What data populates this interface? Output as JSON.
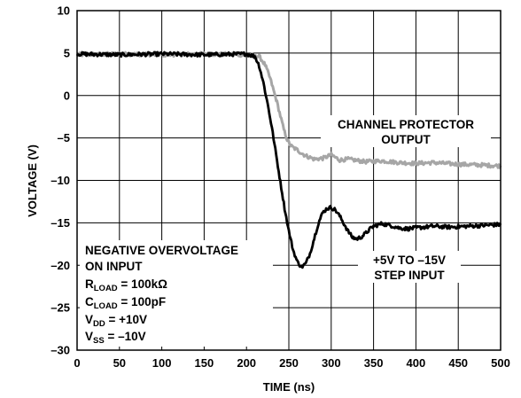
{
  "chart_data": {
    "type": "line",
    "title": "",
    "xlabel": "TIME (ns)",
    "ylabel": "VOLTAGE (V)",
    "xlim": [
      0,
      500
    ],
    "ylim": [
      -30,
      10
    ],
    "x_ticks": [
      0,
      50,
      100,
      150,
      200,
      250,
      300,
      350,
      400,
      450,
      500
    ],
    "y_ticks": [
      10,
      5,
      0,
      -5,
      -10,
      -15,
      -20,
      -25,
      -30
    ],
    "grid": true,
    "series": [
      {
        "name": "CHANNEL PROTECTOR OUTPUT",
        "color": "#a6a6a6",
        "x": [
          0,
          50,
          100,
          150,
          200,
          215,
          222,
          228,
          232,
          236,
          240,
          244,
          248,
          252,
          256,
          260,
          265,
          270,
          280,
          290,
          300,
          310,
          320,
          340,
          360,
          380,
          400,
          420,
          450,
          480,
          500
        ],
        "y": [
          4.8,
          4.9,
          4.8,
          4.9,
          4.8,
          4.6,
          3.6,
          2.0,
          0.6,
          -0.8,
          -2.4,
          -4.0,
          -5.2,
          -5.9,
          -6.2,
          -6.4,
          -6.8,
          -7.1,
          -7.5,
          -7.4,
          -7.0,
          -7.6,
          -7.5,
          -7.8,
          -7.7,
          -7.9,
          -8.0,
          -7.9,
          -8.1,
          -8.2,
          -8.3
        ]
      },
      {
        "name": "+5V TO –15V STEP INPUT",
        "color": "#000000",
        "x": [
          0,
          50,
          100,
          150,
          200,
          210,
          215,
          220,
          225,
          230,
          235,
          240,
          245,
          250,
          255,
          260,
          265,
          270,
          275,
          280,
          285,
          290,
          295,
          300,
          305,
          310,
          315,
          320,
          325,
          330,
          335,
          340,
          345,
          350,
          360,
          370,
          380,
          390,
          400,
          420,
          440,
          460,
          480,
          500
        ],
        "y": [
          4.9,
          4.8,
          4.9,
          4.8,
          4.9,
          4.6,
          3.5,
          1.5,
          -1.0,
          -3.8,
          -7.0,
          -10.2,
          -13.3,
          -16.0,
          -18.2,
          -19.6,
          -20.2,
          -19.8,
          -18.6,
          -16.8,
          -15.0,
          -13.8,
          -13.3,
          -13.2,
          -13.5,
          -14.2,
          -15.1,
          -16.0,
          -16.7,
          -16.9,
          -16.7,
          -16.3,
          -15.8,
          -15.4,
          -15.1,
          -15.3,
          -15.6,
          -15.7,
          -15.6,
          -15.4,
          -15.5,
          -15.4,
          -15.3,
          -15.2
        ]
      }
    ],
    "annotations": {
      "neg_line1": "NEGATIVE OVERVOLTAGE",
      "neg_line2": "ON INPUT",
      "rload_main": "R",
      "rload_sub": "LOAD",
      "rload_val": " = 100kΩ",
      "cload_main": "C",
      "cload_sub": "LOAD",
      "cload_val": " = 100pF",
      "vdd_main": "V",
      "vdd_sub": "DD",
      "vdd_val": " = +10V",
      "vss_main": "V",
      "vss_sub": "SS",
      "vss_val": " = –10V",
      "out_label_1": "CHANNEL PROTECTOR",
      "out_label_2": "OUTPUT",
      "in_label_1": "+5V TO –15V",
      "in_label_2": "STEP INPUT"
    }
  }
}
